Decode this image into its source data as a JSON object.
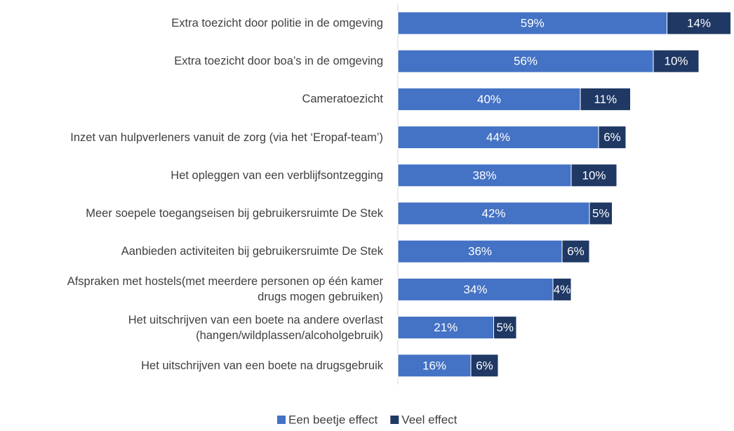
{
  "chart_data": {
    "type": "stacked_bar_horizontal",
    "categories": [
      "Extra toezicht door politie in de omgeving",
      "Extra toezicht door boa’s in de omgeving",
      "Cameratoezicht",
      "Inzet van hulpverleners vanuit de zorg (via het ‘Eropaf-team’)",
      "Het opleggen van een verblijfsontzegging",
      "Meer soepele toegangseisen bij gebruikersruimte De Stek",
      "Aanbieden activiteiten bij gebruikersruimte De Stek",
      "Afspraken met hostels(met meerdere personen op één kamer\ndrugs mogen gebruiken)",
      "Het uitschrijven van een boete na andere overlast\n(hangen/wildplassen/alcoholgebruik)",
      "Het uitschrijven van een boete na drugsgebruik"
    ],
    "series": [
      {
        "name": "Een beetje effect",
        "color": "#4472c4",
        "values": [
          59,
          56,
          40,
          44,
          38,
          42,
          36,
          34,
          21,
          16
        ],
        "value_labels": [
          "59%",
          "56%",
          "40%",
          "44%",
          "38%",
          "42%",
          "36%",
          "34%",
          "21%",
          "16%"
        ]
      },
      {
        "name": "Veel effect",
        "color": "#1f3864",
        "values": [
          14,
          10,
          11,
          6,
          10,
          5,
          6,
          4,
          5,
          6
        ],
        "value_labels": [
          "14%",
          "10%",
          "11%",
          "6%",
          "10%",
          "5%",
          "6%",
          "4%",
          "5%",
          "6%"
        ]
      }
    ],
    "legend": "bottom"
  }
}
